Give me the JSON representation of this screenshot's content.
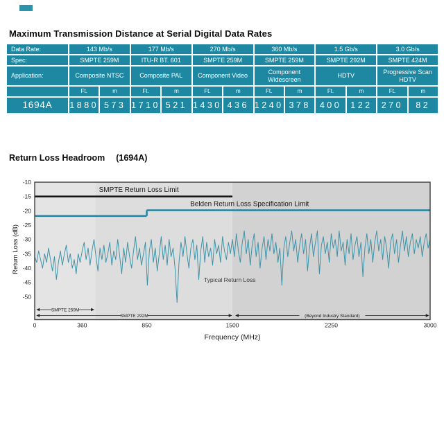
{
  "header": {
    "title": "Maximum Transmission Distance at Serial Digital Data Rates"
  },
  "table": {
    "label_column": [
      "Data Rate:",
      "Spec:",
      "Application:"
    ],
    "unit_ft": "Ft.",
    "unit_m": "m",
    "product": "1694A",
    "columns": [
      {
        "rate": "143 Mb/s",
        "spec": "SMPTE 259M",
        "app": "Composite NTSC",
        "ft": "1880",
        "m": "573"
      },
      {
        "rate": "177 Mb/s",
        "spec": "ITU-R BT. 601",
        "app": "Composite PAL",
        "ft": "1710",
        "m": "521"
      },
      {
        "rate": "270 Mb/s",
        "spec": "SMPTE 259M",
        "app": "Component Video",
        "ft": "1430",
        "m": "436"
      },
      {
        "rate": "360 Mb/s",
        "spec": "SMPTE 259M",
        "app": "Component Widescreen",
        "ft": "1240",
        "m": "378"
      },
      {
        "rate": "1.5 Gb/s",
        "spec": "SMPTE 292M",
        "app": "HDTV",
        "ft": "400",
        "m": "122"
      },
      {
        "rate": "3.0 Gb/s",
        "spec": "SMPTE 424M",
        "app": "Progressive Scan HDTV",
        "ft": "270",
        "m": "82"
      }
    ],
    "colors": {
      "cell": "#1e88a2",
      "text": "#ffffff"
    }
  },
  "chart_section": {
    "title": "Return Loss Headroom",
    "code": "(1694A)"
  },
  "chart_data": {
    "type": "line",
    "title": "Return Loss Headroom (1694A)",
    "xlabel": "Frequency (MHz)",
    "ylabel": "Return Loss (dB)",
    "xlim": [
      0,
      3000
    ],
    "ylim": [
      -58,
      -10
    ],
    "x_ticks": [
      0,
      360,
      850,
      1500,
      2250,
      3000
    ],
    "y_ticks": [
      -10,
      -15,
      -20,
      -25,
      -30,
      -35,
      -40,
      -45,
      -50
    ],
    "grid": false,
    "legend_position": "none",
    "bands": [
      {
        "from": 0,
        "to": 460,
        "color": "#e4e4e4"
      },
      {
        "from": 460,
        "to": 1500,
        "color": "#dddddd"
      },
      {
        "from": 1500,
        "to": 3000,
        "color": "#d2d2d2"
      }
    ],
    "limit_lines": [
      {
        "name": "smpte-limit",
        "label": "SMPTE Return Loss  Limit",
        "color": "#151515",
        "width": 2.6,
        "label_x": 790,
        "label_db": -13.4,
        "segments": [
          {
            "from": 0,
            "to": 1500,
            "db": -15
          }
        ]
      },
      {
        "name": "belden-limit",
        "label": "Belden Return Loss Specification    Limit",
        "color": "#2b85a0",
        "width": 2.6,
        "label_x": 1630,
        "label_db": -18.4,
        "segments": [
          {
            "from": 0,
            "to": 850,
            "db": -21.8
          },
          {
            "from": 850,
            "to": 3000,
            "db": -19.8
          }
        ]
      }
    ],
    "series": [
      {
        "name": "Typical Return Loss",
        "color": "#3d93a8",
        "width": 1,
        "label_x": 1480,
        "label_db": -44.8,
        "x_step_mhz": 15,
        "values": [
          -36,
          -38,
          -34,
          -37,
          -40,
          -35,
          -38,
          -33,
          -37,
          -41,
          -36,
          -44,
          -38,
          -34,
          -39,
          -35,
          -32,
          -38,
          -35,
          -40,
          -37,
          -42,
          -35,
          -38,
          -34,
          -31,
          -37,
          -33,
          -39,
          -34,
          -30,
          -36,
          -41,
          -33,
          -37,
          -32,
          -38,
          -35,
          -31,
          -39,
          -34,
          -37,
          -30,
          -36,
          -42,
          -33,
          -38,
          -31,
          -36,
          -40,
          -34,
          -29,
          -37,
          -33,
          -39,
          -35,
          -31,
          -46,
          -34,
          -30,
          -38,
          -33,
          -41,
          -35,
          -29,
          -37,
          -32,
          -39,
          -30,
          -36,
          -33,
          -40,
          -52,
          -38,
          -31,
          -36,
          -29,
          -35,
          -40,
          -33,
          -30,
          -37,
          -32,
          -44,
          -34,
          -29,
          -38,
          -31,
          -36,
          -33,
          -39,
          -30,
          -35,
          -32,
          -38,
          -29,
          -34,
          -37,
          -31,
          -35,
          -30,
          -36,
          -28,
          -34,
          -38,
          -31,
          -27,
          -35,
          -30,
          -39,
          -32,
          -28,
          -36,
          -31,
          -40,
          -33,
          -29,
          -37,
          -30,
          -34,
          -28,
          -35,
          -31,
          -38,
          -33,
          -46,
          -33,
          -29,
          -36,
          -31,
          -27,
          -34,
          -30,
          -38,
          -32,
          -28,
          -35,
          -30,
          -41,
          -33,
          -28,
          -36,
          -31,
          -27,
          -42,
          -32,
          -29,
          -35,
          -31,
          -38,
          -28,
          -33,
          -30,
          -36,
          -27,
          -34,
          -31,
          -39,
          -30,
          -35,
          -28,
          -37,
          -32,
          -29,
          -36,
          -31,
          -43,
          -33,
          -28,
          -35,
          -30,
          -38,
          -31,
          -27,
          -34,
          -30,
          -37,
          -29,
          -33,
          -40,
          -31,
          -28,
          -35,
          -30,
          -38,
          -32,
          -27,
          -34,
          -29,
          -36,
          -31,
          -28,
          -35,
          -30,
          -33,
          -29,
          -36,
          -31,
          -28,
          -33,
          -30
        ]
      }
    ],
    "range_annotations": [
      {
        "label": "SMPTE 259M",
        "from": 15,
        "to": 450,
        "row": 0
      },
      {
        "label": "SMPTE 292M",
        "from": 15,
        "to": 1495,
        "row": 1
      },
      {
        "label": "(Beyond Industry Standard)",
        "from": 1525,
        "to": 2990,
        "row": 1
      }
    ]
  }
}
